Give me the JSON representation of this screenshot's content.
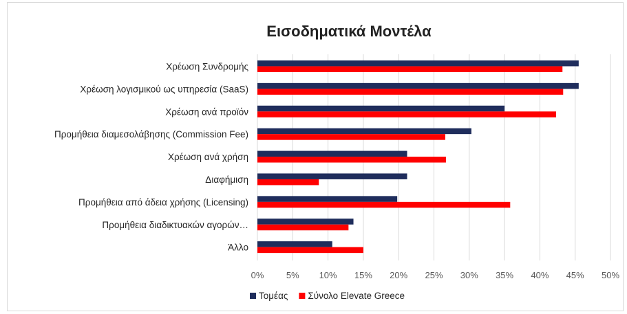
{
  "chart_data": {
    "type": "bar",
    "orientation": "horizontal",
    "title": "Εισοδηματικά Μοντέλα",
    "categories": [
      "Χρέωση Συνδρομής",
      "Χρέωση λογισμικού ως υπηρεσία (SaaS)",
      "Χρέωση ανά προϊόν",
      "Προμήθεια διαμεσολάβησης (Commission Fee)",
      "Χρέωση ανά χρήση",
      "Διαφήμιση",
      "Προμήθεια από άδεια χρήσης (Licensing)",
      "Προμήθεια διαδικτυακών αγορών…",
      "Άλλο"
    ],
    "series": [
      {
        "name": "Τομέας",
        "color": "#1f2d5c",
        "values": [
          45.5,
          45.5,
          35.0,
          30.3,
          21.2,
          21.2,
          19.8,
          13.6,
          10.6
        ]
      },
      {
        "name": "Σύνολο Elevate Greece",
        "color": "#ff0000",
        "values": [
          43.2,
          43.3,
          42.3,
          26.6,
          26.7,
          8.7,
          35.8,
          12.9,
          15.0
        ]
      }
    ],
    "xlim": [
      0,
      50
    ],
    "xticks": [
      "0%",
      "5%",
      "10%",
      "15%",
      "20%",
      "25%",
      "30%",
      "35%",
      "40%",
      "45%",
      "50%"
    ],
    "xlabel": "",
    "ylabel": "",
    "grid": true,
    "legend_position": "bottom-center"
  }
}
